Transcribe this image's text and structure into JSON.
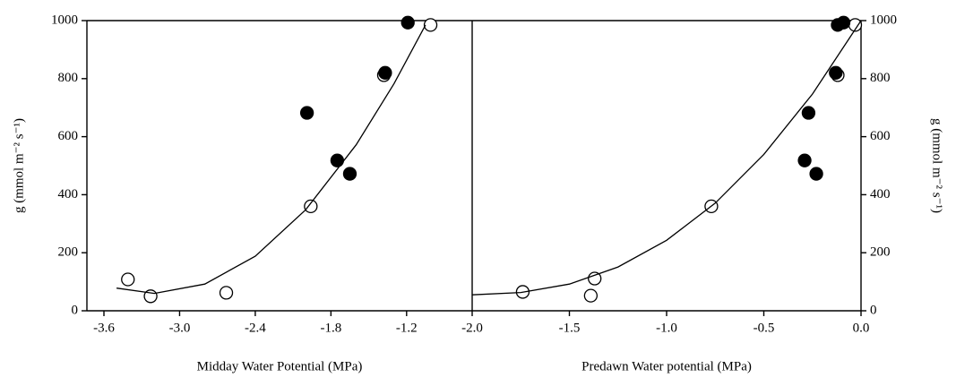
{
  "chart_data": [
    {
      "type": "scatter",
      "xlabel": "Midday Water Potential (MPa)",
      "ylabel": "g (mmol m⁻² s⁻¹)",
      "yaxis_side": "left",
      "xlim": [
        -3.735,
        -0.68
      ],
      "ylim": [
        0,
        1000
      ],
      "xticks": [
        -3.6,
        {
          "value": -3,
          "label": "-3.0"
        },
        -2.4,
        -1.8,
        -1.2
      ],
      "yticks": [
        0,
        200,
        400,
        600,
        800,
        1000
      ],
      "series": [
        {
          "mode": "markers",
          "color": "#000000",
          "fill": "#ffffff",
          "x": [
            -3.41,
            -3.23,
            -2.63,
            -1.96,
            -1.38,
            -1.01
          ],
          "values": [
            108,
            50,
            62,
            360,
            812,
            985
          ]
        },
        {
          "mode": "markers",
          "color": "#000000",
          "fill": "#000000",
          "x": [
            -1.99,
            -1.75,
            -1.65,
            -1.37,
            -1.19
          ],
          "values": [
            682,
            518,
            472,
            820,
            993
          ]
        },
        {
          "mode": "lines",
          "color": "#000000",
          "x": [
            -3.5,
            -3.2,
            -2.8,
            -2.4,
            -2.0,
            -1.6,
            -1.3,
            -1.05
          ],
          "values": [
            78,
            60,
            92,
            188,
            348,
            572,
            782,
            985
          ]
        }
      ]
    },
    {
      "type": "scatter",
      "xlabel": "Predawn Water potential (MPa)",
      "ylabel": "g (mmol m⁻² s⁻¹)",
      "yaxis_side": "right",
      "xlim": [
        -2,
        0
      ],
      "ylim": [
        0,
        1000
      ],
      "xticks": [
        {
          "value": -2,
          "label": "-2.0"
        },
        -1.5,
        {
          "value": -1,
          "label": "-1.0"
        },
        -0.5,
        {
          "value": 0,
          "label": "0.0"
        }
      ],
      "yticks": [
        0,
        200,
        400,
        600,
        800,
        1000
      ],
      "series": [
        {
          "mode": "markers",
          "color": "#000000",
          "fill": "#ffffff",
          "x": [
            -1.74,
            -1.39,
            -1.37,
            -0.77,
            -0.12,
            -0.03
          ],
          "values": [
            65,
            52,
            111,
            360,
            812,
            985
          ]
        },
        {
          "mode": "markers",
          "color": "#000000",
          "fill": "#000000",
          "x": [
            -0.29,
            -0.27,
            -0.23,
            -0.13,
            -0.12,
            -0.09
          ],
          "values": [
            518,
            682,
            472,
            820,
            985,
            993
          ]
        },
        {
          "mode": "lines",
          "color": "#000000",
          "x": [
            -2.0,
            -1.75,
            -1.5,
            -1.25,
            -1.0,
            -0.75,
            -0.5,
            -0.25,
            0
          ],
          "values": [
            55,
            63,
            92,
            151,
            243,
            371,
            539,
            747,
            1000
          ]
        }
      ]
    }
  ]
}
